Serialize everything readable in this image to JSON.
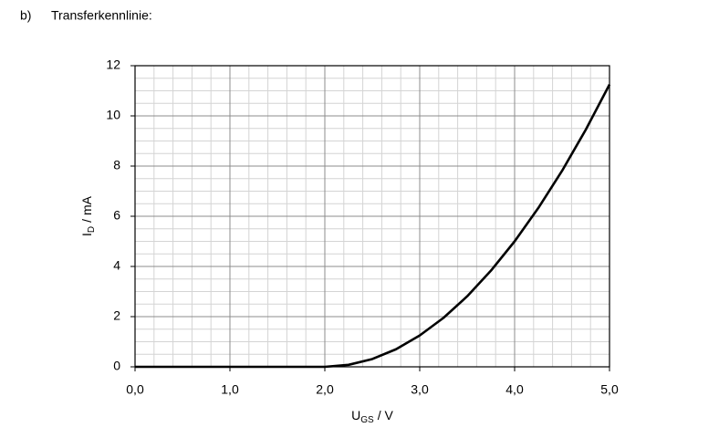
{
  "header": {
    "label": "b)",
    "title": "Transferkennlinie:"
  },
  "chart_data": {
    "type": "line",
    "x": [
      0,
      0.5,
      1,
      1.5,
      2,
      2.25,
      2.5,
      2.75,
      3,
      3.25,
      3.5,
      3.75,
      4,
      4.25,
      4.5,
      4.75,
      5
    ],
    "values": [
      0,
      0,
      0,
      0,
      0,
      0.08,
      0.31,
      0.7,
      1.25,
      1.95,
      2.81,
      3.83,
      5,
      6.33,
      7.81,
      9.45,
      11.25
    ],
    "color": "#000000",
    "x_label": [
      "U",
      "GS",
      "/ V"
    ],
    "y_label": [
      "I",
      "D",
      "/ mA"
    ],
    "xlim": [
      0,
      5
    ],
    "xticks": [
      {
        "value": 0,
        "label": "0,0"
      },
      {
        "value": 1,
        "label": "1,0"
      },
      {
        "value": 2,
        "label": "2,0"
      },
      {
        "value": 3,
        "label": "3,0"
      },
      {
        "value": 4,
        "label": "4,0"
      },
      {
        "value": 5,
        "label": "5,0"
      }
    ],
    "ylim": [
      0,
      12
    ],
    "yticks": [
      0,
      2,
      4,
      6,
      8,
      10,
      12
    ],
    "grid": true,
    "minor_grid": true
  }
}
